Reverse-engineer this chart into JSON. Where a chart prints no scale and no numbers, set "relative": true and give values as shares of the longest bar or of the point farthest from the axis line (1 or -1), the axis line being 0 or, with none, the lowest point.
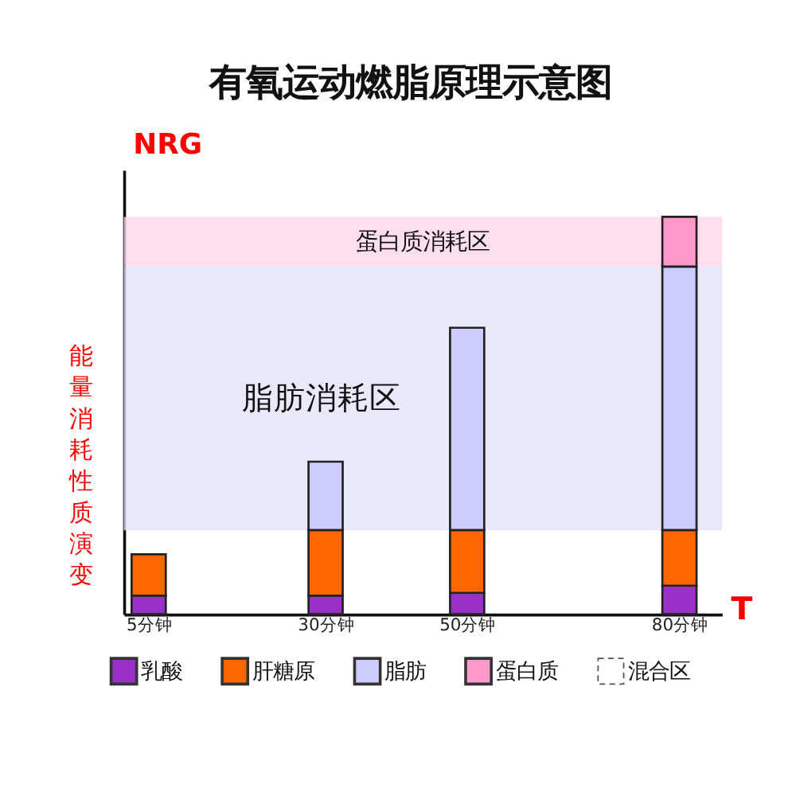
{
  "chart_data": {
    "type": "bar",
    "title": "有氧运动燃脂原理示意图",
    "ylabel": "NRG",
    "xlabel": "T",
    "stacked": true,
    "relative": true,
    "legend": "bottom",
    "x": [
      5,
      30,
      50,
      80
    ],
    "xlim": [
      2.5,
      85
    ],
    "xticks": [
      {
        "value": 5,
        "label": "5分钟"
      },
      {
        "value": 30,
        "label": "30分钟"
      },
      {
        "value": 50,
        "label": "50分钟"
      },
      {
        "value": 80,
        "label": "80分钟"
      }
    ],
    "series": [
      {
        "name": "乳酸",
        "color": "#9b30c8",
        "values": [
          0.047,
          0.047,
          0.054,
          0.072
        ]
      },
      {
        "name": "肝糖原",
        "color": "#ff6600",
        "values": [
          0.104,
          0.165,
          0.158,
          0.14
        ]
      },
      {
        "name": "脂肪",
        "color": "#ccccff",
        "values": [
          null,
          0.172,
          0.509,
          0.663
        ]
      },
      {
        "name": "蛋白质",
        "color": "#ff99cc",
        "values": [
          null,
          null,
          null,
          0.125
        ]
      },
      {
        "name": "混合区",
        "color": "#ffffff",
        "line_style": "dashed",
        "values": [
          null,
          null,
          null,
          null
        ]
      }
    ],
    "bands": [
      {
        "axis": "y",
        "from": 0.875,
        "to": 1.0,
        "label": "蛋白质消耗区",
        "color": "#ffd6e8"
      },
      {
        "axis": "y",
        "from": 0.211,
        "to": 0.875,
        "label": "脂肪消耗区",
        "color": "#e4e4fa"
      }
    ],
    "annotations": [
      "能量消耗性质演变"
    ]
  }
}
